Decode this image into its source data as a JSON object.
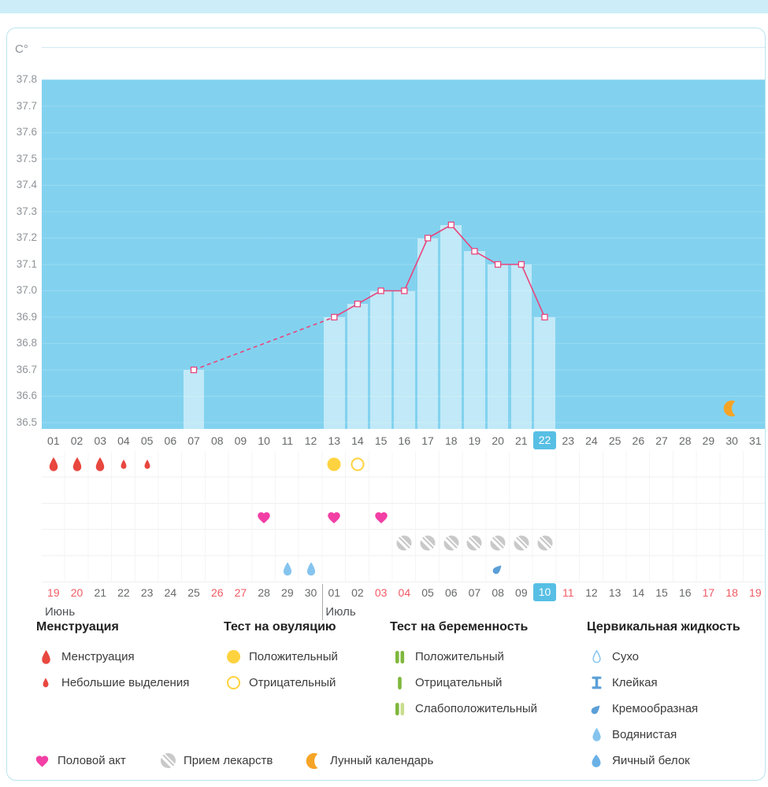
{
  "colors": {
    "top_strip": "#cdeef8",
    "card_border": "#b9e4f1",
    "chart_bg": "#82d2ef",
    "bar_fill": "rgba(255,255,255,0.5)",
    "line": "#e8457d",
    "marker_fill": "#ffffff",
    "axis_text": "#8f9499",
    "day_text": "#67696b",
    "highlight_bg": "#58bfe4",
    "highlight_text": "#ffffff",
    "weekend_text": "#f05a64",
    "menstruation": "#e8473e",
    "ovulation": "#ffd23f",
    "heart": "#f23fa5",
    "pill": "#c9c9c9",
    "preg": "#7fb73d",
    "preg_pale": "#c9dd8f",
    "fluid_light": "#85c4ee",
    "fluid_mid": "#5b9fd8",
    "fluid_egg": "#6ab1e6",
    "moon": "#f6a426"
  },
  "chart_data": {
    "type": "line",
    "ylabel": "C°",
    "ylim": [
      36.5,
      37.8
    ],
    "ytick_labels": [
      "37.8",
      "37.7",
      "37.6",
      "37.5",
      "37.4",
      "37.3",
      "37.2",
      "37.1",
      "37.0",
      "36.9",
      "36.8",
      "36.7",
      "36.6",
      "36.5"
    ],
    "x_days_total": 31,
    "cycle_day_labels": [
      "01",
      "02",
      "03",
      "04",
      "05",
      "06",
      "07",
      "08",
      "09",
      "10",
      "11",
      "12",
      "13",
      "14",
      "15",
      "16",
      "17",
      "18",
      "19",
      "20",
      "21",
      "22",
      "23",
      "24",
      "25",
      "26",
      "27",
      "28",
      "29",
      "30",
      "31"
    ],
    "highlighted_cycle_day": "22",
    "series": [
      {
        "name": "basal-temperature",
        "points": [
          {
            "day": 7,
            "temp": 36.7
          },
          {
            "day": 13,
            "temp": 36.9
          },
          {
            "day": 14,
            "temp": 36.95
          },
          {
            "day": 15,
            "temp": 37.0
          },
          {
            "day": 16,
            "temp": 37.0
          },
          {
            "day": 17,
            "temp": 37.2
          },
          {
            "day": 18,
            "temp": 37.25
          },
          {
            "day": 19,
            "temp": 37.15
          },
          {
            "day": 20,
            "temp": 37.1
          },
          {
            "day": 21,
            "temp": 37.1
          },
          {
            "day": 22,
            "temp": 36.9
          }
        ],
        "dashed_between_days": [
          7,
          13
        ],
        "bar_days": [
          7,
          13,
          14,
          15,
          16,
          17,
          18,
          19,
          20,
          21,
          22
        ]
      }
    ],
    "moon_marker_day": 30
  },
  "symbols": [
    {
      "row": 1,
      "day": 1,
      "icon": "drop-large-red"
    },
    {
      "row": 1,
      "day": 2,
      "icon": "drop-large-red"
    },
    {
      "row": 1,
      "day": 3,
      "icon": "drop-large-red"
    },
    {
      "row": 1,
      "day": 4,
      "icon": "drop-small-red"
    },
    {
      "row": 1,
      "day": 5,
      "icon": "drop-small-red"
    },
    {
      "row": 1,
      "day": 13,
      "icon": "circle-yellow-filled"
    },
    {
      "row": 1,
      "day": 14,
      "icon": "circle-yellow-outline"
    },
    {
      "row": 3,
      "day": 10,
      "icon": "heart-pink"
    },
    {
      "row": 3,
      "day": 13,
      "icon": "heart-pink"
    },
    {
      "row": 3,
      "day": 15,
      "icon": "heart-pink"
    },
    {
      "row": 4,
      "day": 16,
      "icon": "pill-gray"
    },
    {
      "row": 4,
      "day": 17,
      "icon": "pill-gray"
    },
    {
      "row": 4,
      "day": 18,
      "icon": "pill-gray"
    },
    {
      "row": 4,
      "day": 19,
      "icon": "pill-gray"
    },
    {
      "row": 4,
      "day": 20,
      "icon": "pill-gray"
    },
    {
      "row": 4,
      "day": 21,
      "icon": "pill-gray"
    },
    {
      "row": 4,
      "day": 22,
      "icon": "pill-gray"
    },
    {
      "row": 5,
      "day": 11,
      "icon": "drop-watery"
    },
    {
      "row": 5,
      "day": 12,
      "icon": "drop-watery"
    },
    {
      "row": 5,
      "day": 20,
      "icon": "creamy"
    }
  ],
  "calendar": {
    "months": [
      {
        "name": "Июнь",
        "dates": [
          {
            "d": "19",
            "weekend": true
          },
          {
            "d": "20",
            "weekend": true
          },
          {
            "d": "21"
          },
          {
            "d": "22"
          },
          {
            "d": "23"
          },
          {
            "d": "24"
          },
          {
            "d": "25"
          },
          {
            "d": "26",
            "weekend": true
          },
          {
            "d": "27",
            "weekend": true
          },
          {
            "d": "28"
          },
          {
            "d": "29"
          },
          {
            "d": "30"
          }
        ]
      },
      {
        "name": "Июль",
        "dates": [
          {
            "d": "01"
          },
          {
            "d": "02"
          },
          {
            "d": "03",
            "weekend": true
          },
          {
            "d": "04",
            "weekend": true
          },
          {
            "d": "05"
          },
          {
            "d": "06"
          },
          {
            "d": "07"
          },
          {
            "d": "08"
          },
          {
            "d": "09"
          },
          {
            "d": "10",
            "today": true
          },
          {
            "d": "11",
            "weekend": true
          },
          {
            "d": "12"
          },
          {
            "d": "13"
          },
          {
            "d": "14"
          },
          {
            "d": "15"
          },
          {
            "d": "16"
          },
          {
            "d": "17",
            "weekend": true
          },
          {
            "d": "18",
            "weekend": true
          },
          {
            "d": "19",
            "weekend": true
          }
        ]
      }
    ]
  },
  "legend": {
    "groups": [
      {
        "title": "Менструация",
        "items": [
          {
            "icon": "drop-large-red",
            "label": "Менструация"
          },
          {
            "icon": "drop-small-red",
            "label": "Небольшие выделения"
          }
        ]
      },
      {
        "title": "Тест на овуляцию",
        "items": [
          {
            "icon": "circle-yellow-filled",
            "label": "Положительный"
          },
          {
            "icon": "circle-yellow-outline",
            "label": "Отрицательный"
          }
        ]
      },
      {
        "title": "Тест на беременность",
        "items": [
          {
            "icon": "preg-positive",
            "label": "Положительный"
          },
          {
            "icon": "preg-negative",
            "label": "Отрицательный"
          },
          {
            "icon": "preg-weak",
            "label": "Слабоположительный"
          }
        ]
      },
      {
        "title": "Цервикальная жидкость",
        "items": [
          {
            "icon": "drop-dry",
            "label": "Сухо"
          },
          {
            "icon": "sticky",
            "label": "Клейкая"
          },
          {
            "icon": "creamy",
            "label": "Кремообразная"
          },
          {
            "icon": "drop-watery",
            "label": "Водянистая"
          },
          {
            "icon": "egg-white",
            "label": "Яичный белок"
          }
        ]
      }
    ],
    "extra_items": [
      {
        "icon": "heart-pink",
        "label": "Половой акт"
      },
      {
        "icon": "pill-gray",
        "label": "Прием лекарств"
      },
      {
        "icon": "moon",
        "label": "Лунный календарь"
      }
    ]
  }
}
